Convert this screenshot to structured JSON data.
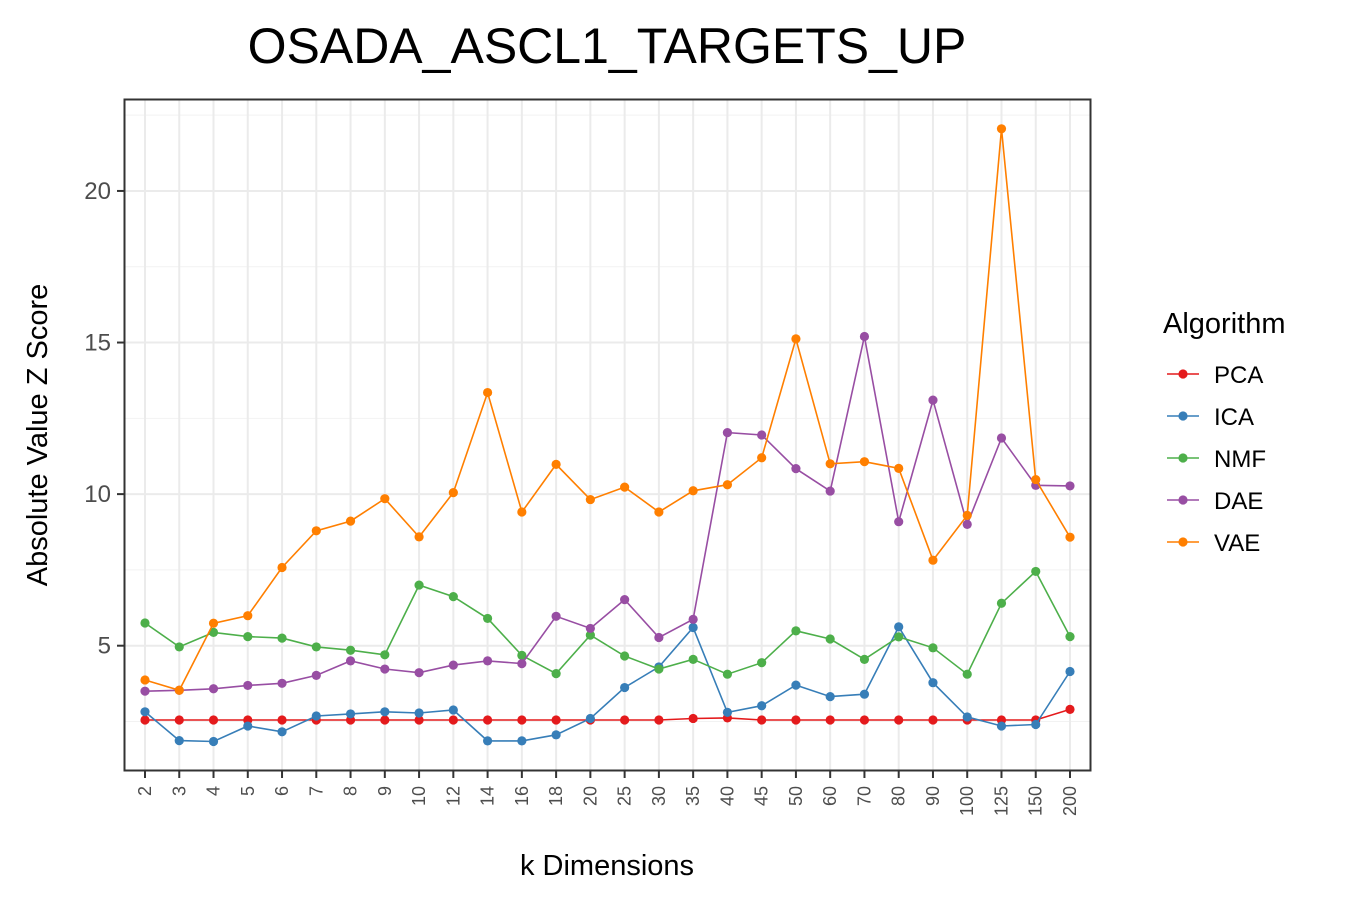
{
  "chart_data": {
    "type": "line",
    "title": "OSADA_ASCL1_TARGETS_UP",
    "xlabel": "k Dimensions",
    "ylabel": "Absolute Value Z Score",
    "categories": [
      "2",
      "3",
      "4",
      "5",
      "6",
      "7",
      "8",
      "9",
      "10",
      "12",
      "14",
      "16",
      "18",
      "20",
      "25",
      "30",
      "35",
      "40",
      "45",
      "50",
      "60",
      "70",
      "80",
      "90",
      "100",
      "125",
      "150",
      "200"
    ],
    "yticks": [
      5,
      10,
      15,
      20
    ],
    "ylim": [
      0.9,
      23.0
    ],
    "grid": true,
    "legend": {
      "title": "Algorithm",
      "position": "right"
    },
    "series": [
      {
        "name": "PCA",
        "color": "#e41a1c",
        "values": [
          2.55,
          2.55,
          2.55,
          2.55,
          2.55,
          2.55,
          2.55,
          2.55,
          2.55,
          2.55,
          2.55,
          2.55,
          2.55,
          2.55,
          2.55,
          2.55,
          2.6,
          2.62,
          2.55,
          2.55,
          2.55,
          2.55,
          2.55,
          2.55,
          2.55,
          2.55,
          2.55,
          2.9
        ]
      },
      {
        "name": "ICA",
        "color": "#377eb8",
        "values": [
          2.82,
          1.87,
          1.84,
          2.35,
          2.16,
          2.68,
          2.75,
          2.82,
          2.78,
          2.88,
          1.86,
          1.86,
          2.06,
          2.6,
          3.62,
          4.3,
          5.6,
          2.8,
          3.02,
          3.7,
          3.32,
          3.4,
          5.62,
          3.78,
          2.65,
          2.35,
          2.4,
          4.15
        ]
      },
      {
        "name": "NMF",
        "color": "#4daf4a",
        "values": [
          5.75,
          4.96,
          5.44,
          5.3,
          5.25,
          4.96,
          4.85,
          4.7,
          7.0,
          6.62,
          5.9,
          4.68,
          4.08,
          5.35,
          4.66,
          4.23,
          4.55,
          4.06,
          4.44,
          5.49,
          5.22,
          4.55,
          5.29,
          4.93,
          4.06,
          6.4,
          7.45,
          5.3
        ]
      },
      {
        "name": "DAE",
        "color": "#984ea3",
        "values": [
          3.5,
          3.53,
          3.58,
          3.69,
          3.76,
          4.02,
          4.5,
          4.23,
          4.11,
          4.36,
          4.5,
          4.41,
          5.97,
          5.57,
          6.52,
          5.27,
          5.87,
          12.03,
          11.95,
          10.84,
          10.1,
          15.2,
          9.09,
          13.1,
          9.0,
          11.85,
          10.29,
          10.27
        ]
      },
      {
        "name": "VAE",
        "color": "#ff7f00",
        "values": [
          3.87,
          3.53,
          5.74,
          5.99,
          7.58,
          8.79,
          9.11,
          9.85,
          8.59,
          10.05,
          13.35,
          9.41,
          10.98,
          9.82,
          10.23,
          9.41,
          10.11,
          10.31,
          11.2,
          15.12,
          11.0,
          11.07,
          10.85,
          7.82,
          9.3,
          22.05,
          10.48,
          8.58
        ]
      }
    ]
  }
}
